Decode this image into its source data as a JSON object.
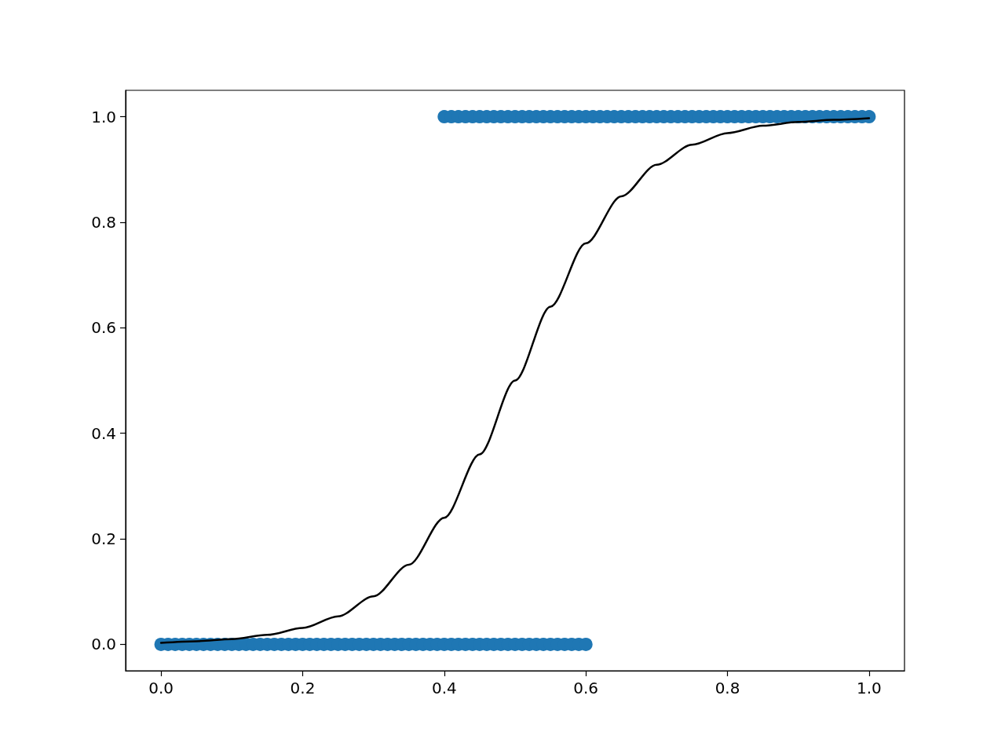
{
  "chart_data": {
    "type": "scatter",
    "xlim": [
      -0.05,
      1.05
    ],
    "ylim": [
      -0.05,
      1.05
    ],
    "xticks": [
      {
        "value": 0,
        "label": "0.0"
      },
      {
        "value": 0.2,
        "label": "0.2"
      },
      {
        "value": 0.4,
        "label": "0.4"
      },
      {
        "value": 0.6,
        "label": "0.6"
      },
      {
        "value": 0.8,
        "label": "0.8"
      },
      {
        "value": 1,
        "label": "1.0"
      }
    ],
    "yticks": [
      {
        "value": 0,
        "label": "0.0"
      },
      {
        "value": 0.2,
        "label": "0.2"
      },
      {
        "value": 0.4,
        "label": "0.4"
      },
      {
        "value": 0.6,
        "label": "0.6"
      },
      {
        "value": 0.8,
        "label": "0.8"
      },
      {
        "value": 1,
        "label": "1.0"
      }
    ],
    "grid": false,
    "marker": "circle",
    "series": [
      {
        "color": "#1f77b4",
        "x": [
          0,
          0.01,
          0.02,
          0.03,
          0.04,
          0.05,
          0.06,
          0.07,
          0.08,
          0.09,
          0.1,
          0.11,
          0.12,
          0.13,
          0.14,
          0.15,
          0.16,
          0.17,
          0.18,
          0.19,
          0.2,
          0.21,
          0.22,
          0.23,
          0.24,
          0.25,
          0.26,
          0.27,
          0.28,
          0.29,
          0.3,
          0.31,
          0.32,
          0.33,
          0.34,
          0.35,
          0.36,
          0.37,
          0.38,
          0.39,
          0.4,
          0.41,
          0.42,
          0.43,
          0.44,
          0.45,
          0.46,
          0.47,
          0.48,
          0.49,
          0.5,
          0.51,
          0.52,
          0.53,
          0.54,
          0.55,
          0.56,
          0.57,
          0.58,
          0.59,
          0.6
        ],
        "values": [
          0,
          0,
          0,
          0,
          0,
          0,
          0,
          0,
          0,
          0,
          0,
          0,
          0,
          0,
          0,
          0,
          0,
          0,
          0,
          0,
          0,
          0,
          0,
          0,
          0,
          0,
          0,
          0,
          0,
          0,
          0,
          0,
          0,
          0,
          0,
          0,
          0,
          0,
          0,
          0,
          0,
          0,
          0,
          0,
          0,
          0,
          0,
          0,
          0,
          0,
          0,
          0,
          0,
          0,
          0,
          0,
          0,
          0,
          0,
          0,
          0
        ]
      },
      {
        "color": "#1f77b4",
        "x": [
          0.4,
          0.41,
          0.42,
          0.43,
          0.44,
          0.45,
          0.46,
          0.47,
          0.48,
          0.49,
          0.5,
          0.51,
          0.52,
          0.53,
          0.54,
          0.55,
          0.56,
          0.57,
          0.58,
          0.59,
          0.6,
          0.61,
          0.62,
          0.63,
          0.64,
          0.65,
          0.66,
          0.67,
          0.68,
          0.69,
          0.7,
          0.71,
          0.72,
          0.73,
          0.74,
          0.75,
          0.76,
          0.77,
          0.78,
          0.79,
          0.8,
          0.81,
          0.82,
          0.83,
          0.84,
          0.85,
          0.86,
          0.87,
          0.88,
          0.89,
          0.9,
          0.91,
          0.92,
          0.93,
          0.94,
          0.95,
          0.96,
          0.97,
          0.98,
          0.99,
          1
        ],
        "values": [
          1,
          1,
          1,
          1,
          1,
          1,
          1,
          1,
          1,
          1,
          1,
          1,
          1,
          1,
          1,
          1,
          1,
          1,
          1,
          1,
          1,
          1,
          1,
          1,
          1,
          1,
          1,
          1,
          1,
          1,
          1,
          1,
          1,
          1,
          1,
          1,
          1,
          1,
          1,
          1,
          1,
          1,
          1,
          1,
          1,
          1,
          1,
          1,
          1,
          1,
          1,
          1,
          1,
          1,
          1,
          1,
          1,
          1,
          1,
          1,
          1
        ]
      },
      {
        "type": "line",
        "color": "#000000",
        "marker": "none",
        "line_style": "solid",
        "x": [
          0,
          0.05,
          0.1,
          0.15,
          0.2,
          0.25,
          0.3,
          0.35,
          0.4,
          0.45,
          0.5,
          0.55,
          0.6,
          0.65,
          0.7,
          0.75,
          0.8,
          0.85,
          0.9,
          0.95,
          1
        ],
        "values": [
          0.003,
          0.006,
          0.01,
          0.018,
          0.031,
          0.053,
          0.091,
          0.151,
          0.24,
          0.36,
          0.5,
          0.64,
          0.76,
          0.849,
          0.909,
          0.947,
          0.969,
          0.983,
          0.99,
          0.994,
          0.997
        ]
      }
    ]
  }
}
